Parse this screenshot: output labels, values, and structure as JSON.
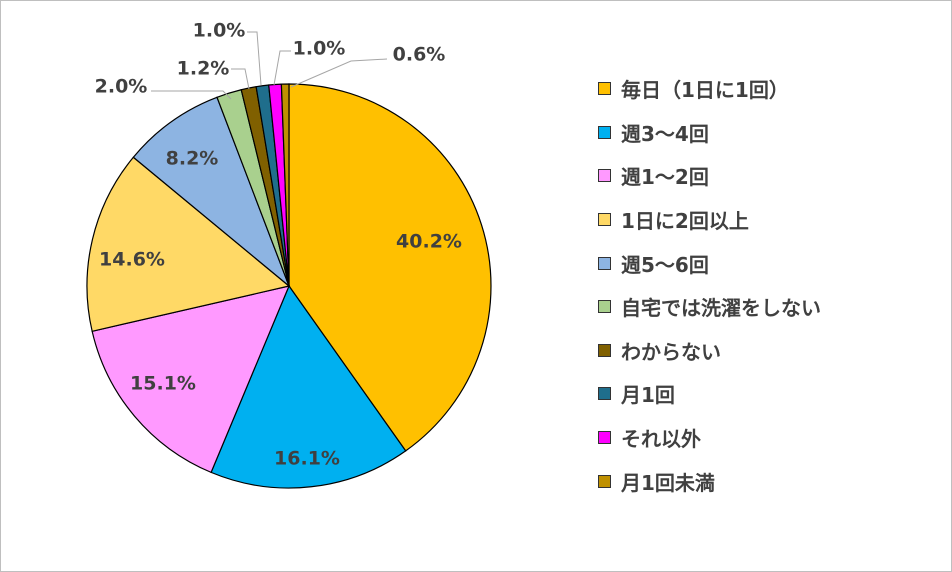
{
  "chart_data": {
    "type": "pie",
    "start_angle": 0,
    "direction": "clockwise",
    "legend_position": "right",
    "slices": [
      {
        "label": "毎日（1日に1回）",
        "value": 40.2,
        "display": "40.2%",
        "color": "#FFC000"
      },
      {
        "label": "週3～4回",
        "value": 16.1,
        "display": "16.1%",
        "color": "#00B0F0"
      },
      {
        "label": "週1～2回",
        "value": 15.1,
        "display": "15.1%",
        "color": "#FF99FF"
      },
      {
        "label": "1日に2回以上",
        "value": 14.6,
        "display": "14.6%",
        "color": "#FFD966"
      },
      {
        "label": "週5～6回",
        "value": 8.2,
        "display": "8.2%",
        "color": "#8DB4E2"
      },
      {
        "label": "自宅では洗濯をしない",
        "value": 2.0,
        "display": "2.0%",
        "color": "#A9D08E"
      },
      {
        "label": "わからない",
        "value": 1.2,
        "display": "1.2%",
        "color": "#806000"
      },
      {
        "label": "月1回",
        "value": 1.0,
        "display": "1.0%",
        "color": "#1F6E8C"
      },
      {
        "label": "それ以外",
        "value": 1.0,
        "display": "1.0%",
        "color": "#FF00FF"
      },
      {
        "label": "月1回未満",
        "value": 0.6,
        "display": "0.6%",
        "color": "#BF9000"
      }
    ]
  }
}
